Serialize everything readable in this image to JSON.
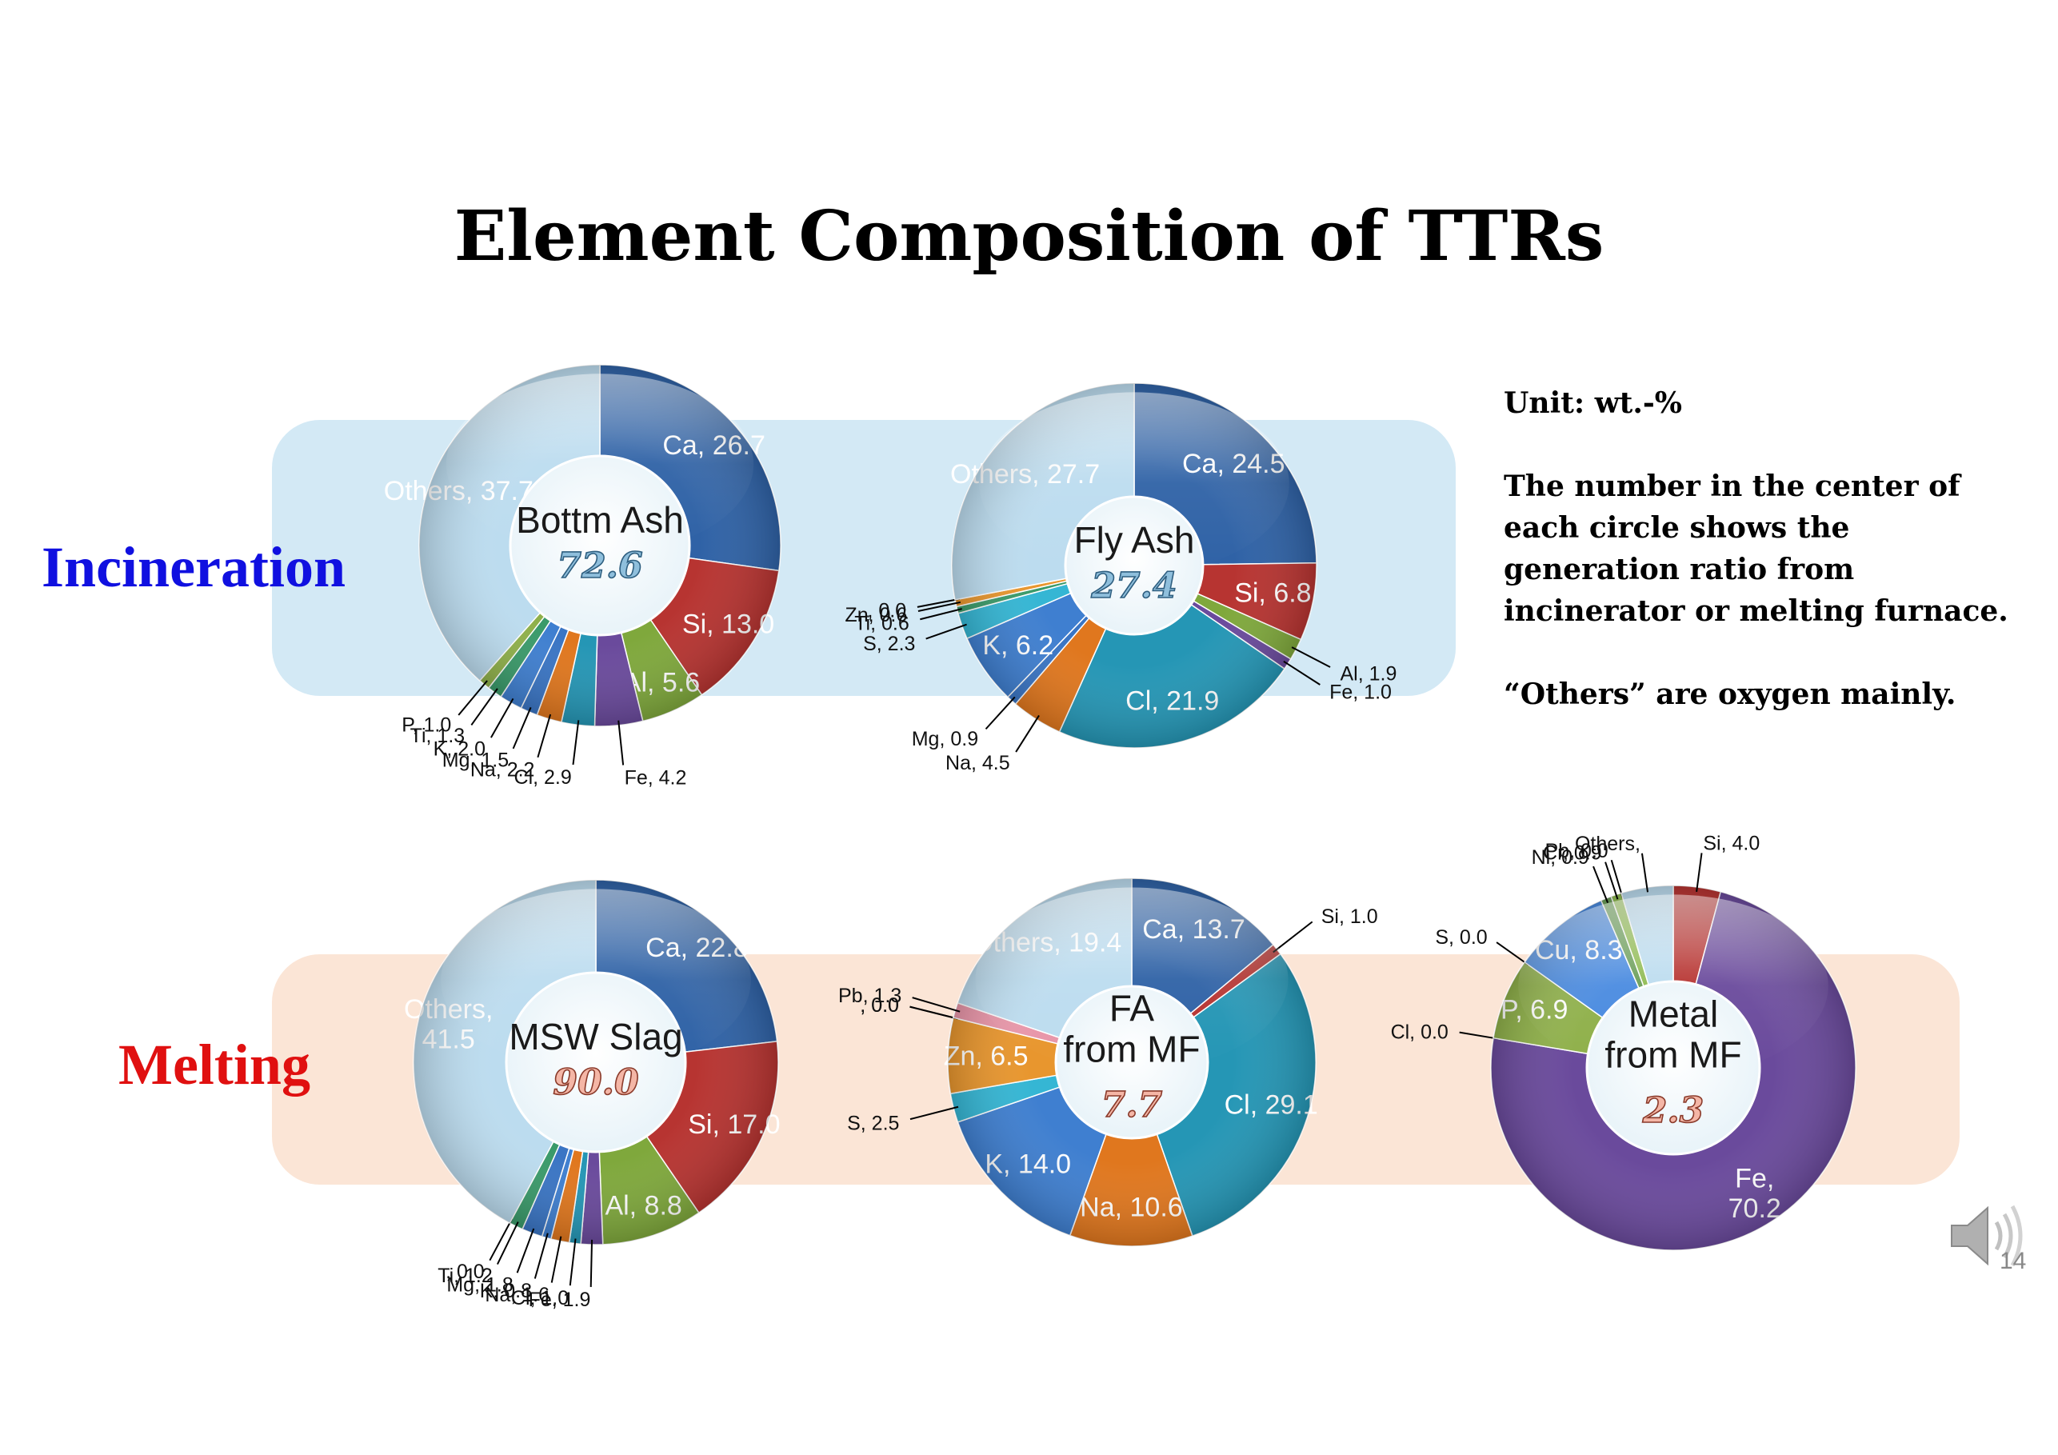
{
  "title": "Element Composition of TTRs",
  "row_labels": {
    "incineration": "Incineration",
    "melting": "Melting"
  },
  "notes": {
    "unit": "Unit: wt.-%",
    "center_explanation": "The number in the center of each circle shows the generation ratio from incinerator or melting furnace.",
    "others_note": "“Others” are oxygen mainly."
  },
  "page_number": "14",
  "speaker_icon": "speaker-icon",
  "colors": {
    "Ca": "#2f62a6",
    "Si": "#b73431",
    "Al": "#7fa83c",
    "Fe": "#6a4a9c",
    "Cl": "#2596b5",
    "Na": "#e0771e",
    "Mg": "#3a75c4",
    "K": "#3f7fd0",
    "Ti": "#3a9a6a",
    "P": "#8fb04a",
    "Zn": "#e8962e",
    "S": "#35b6d4",
    "Pb": "#e895a8",
    "Cu": "#4a8be0",
    "Cr": "#90bb52",
    "Ni": "#6b9e58",
    "Others": "#bcdcef"
  },
  "chart_data": [
    {
      "type": "pie",
      "center_label": "Bottm Ash",
      "center_value": "72.6",
      "slices": [
        {
          "name": "Ca",
          "value": 26.7,
          "label": "Ca, 26.7"
        },
        {
          "name": "Si",
          "value": 13.0,
          "label": "Si, 13.0"
        },
        {
          "name": "Al",
          "value": 5.6,
          "label": "Al, 5.6"
        },
        {
          "name": "Fe",
          "value": 4.2,
          "label": "Fe, 4.2"
        },
        {
          "name": "Cl",
          "value": 2.9,
          "label": "Cl, 2.9"
        },
        {
          "name": "Na",
          "value": 2.2,
          "label": "Na, 2.2"
        },
        {
          "name": "Mg",
          "value": 1.5,
          "label": "Mg, 1.5"
        },
        {
          "name": "K",
          "value": 2.0,
          "label": "K, 2.0"
        },
        {
          "name": "Ti",
          "value": 1.3,
          "label": "Ti, 1.3"
        },
        {
          "name": "P",
          "value": 1.0,
          "label": "P, 1.0"
        },
        {
          "name": "Others",
          "value": 37.7,
          "label": "Others, 37.7"
        }
      ]
    },
    {
      "type": "pie",
      "center_label": "Fly Ash",
      "center_value": "27.4",
      "slices": [
        {
          "name": "Ca",
          "value": 24.5,
          "label": "Ca, 24.5"
        },
        {
          "name": "Si",
          "value": 6.8,
          "label": "Si, 6.8"
        },
        {
          "name": "Al",
          "value": 1.9,
          "label": "Al, 1.9"
        },
        {
          "name": "Fe",
          "value": 1.0,
          "label": "Fe, 1.0"
        },
        {
          "name": "Cl",
          "value": 21.9,
          "label": "Cl, 21.9"
        },
        {
          "name": "Na",
          "value": 4.5,
          "label": "Na, 4.5"
        },
        {
          "name": "Mg",
          "value": 0.9,
          "label": "Mg, 0.9"
        },
        {
          "name": "K",
          "value": 6.2,
          "label": "K, 6.2"
        },
        {
          "name": "S",
          "value": 2.3,
          "label": "S, 2.3"
        },
        {
          "name": "Ti",
          "value": 0.6,
          "label": "Ti, 0.6"
        },
        {
          "name": "Zn",
          "value": 0.6,
          "label": "Zn, 0.6"
        },
        {
          "name": "Pb",
          "value": 0.0,
          "label": ", 0.0"
        },
        {
          "name": "Others",
          "value": 27.7,
          "label": "Others, 27.7"
        }
      ]
    },
    {
      "type": "pie",
      "center_label": "MSW Slag",
      "center_value": "90.0",
      "slices": [
        {
          "name": "Ca",
          "value": 22.8,
          "label": "Ca, 22.8"
        },
        {
          "name": "Si",
          "value": 17.0,
          "label": "Si, 17.0"
        },
        {
          "name": "Al",
          "value": 8.8,
          "label": "Al, 8.8"
        },
        {
          "name": "Fe",
          "value": 1.9,
          "label": "Fe, 1.9"
        },
        {
          "name": "Cl",
          "value": 1.0,
          "label": "Cl, 1.0"
        },
        {
          "name": "Na",
          "value": 1.6,
          "label": "Na, 1.6"
        },
        {
          "name": "K",
          "value": 0.8,
          "label": "K, 0.8"
        },
        {
          "name": "Mg",
          "value": 1.8,
          "label": "Mg, 1.8"
        },
        {
          "name": "Ti",
          "value": 1.2,
          "label": "Ti, 1.2"
        },
        {
          "name": "Pb",
          "value": 0.0,
          "label": ", 0.0"
        },
        {
          "name": "Others",
          "value": 41.5,
          "label": "Others,\n41.5"
        }
      ]
    },
    {
      "type": "pie",
      "center_label": "FA\nfrom MF",
      "center_value": "7.7",
      "slices": [
        {
          "name": "Ca",
          "value": 13.7,
          "label": "Ca, 13.7"
        },
        {
          "name": "Si",
          "value": 1.0,
          "label": "Si, 1.0"
        },
        {
          "name": "Cl",
          "value": 29.1,
          "label": "Cl, 29.1"
        },
        {
          "name": "Na",
          "value": 10.6,
          "label": "Na, 10.6"
        },
        {
          "name": "K",
          "value": 14.0,
          "label": "K, 14.0"
        },
        {
          "name": "S",
          "value": 2.5,
          "label": "S, 2.5"
        },
        {
          "name": "Zn",
          "value": 6.5,
          "label": "Zn, 6.5"
        },
        {
          "name": "Ti",
          "value": 0.0,
          "label": ", 0.0"
        },
        {
          "name": "Fe",
          "value": 0.0,
          "label": ", 0.0"
        },
        {
          "name": "Pb",
          "value": 1.3,
          "label": "Pb, 1.3"
        },
        {
          "name": "Others",
          "value": 19.4,
          "label": "Others, 19.4"
        }
      ]
    },
    {
      "type": "pie",
      "center_label": "Metal\nfrom MF",
      "center_value": "2.3",
      "slices": [
        {
          "name": "Si",
          "value": 4.0,
          "label": "Si, 4.0"
        },
        {
          "name": "Fe",
          "value": 70.2,
          "label": "Fe,\n70.2"
        },
        {
          "name": "Cl",
          "value": 0.0,
          "label": "Cl, 0.0"
        },
        {
          "name": "P",
          "value": 6.9,
          "label": "P, 6.9"
        },
        {
          "name": "S",
          "value": 0.0,
          "label": "S, 0.0"
        },
        {
          "name": "Cu",
          "value": 8.3,
          "label": "Cu, 8.3"
        },
        {
          "name": "Ni",
          "value": 0.9,
          "label": "Ni, 0.9"
        },
        {
          "name": "Cr",
          "value": 0.9,
          "label": "Cr, 0.9"
        },
        {
          "name": "Pb",
          "value": 0.0,
          "label": "Pb, 0.0"
        },
        {
          "name": "Others",
          "value": 4.4,
          "label": "Others,"
        }
      ]
    }
  ]
}
